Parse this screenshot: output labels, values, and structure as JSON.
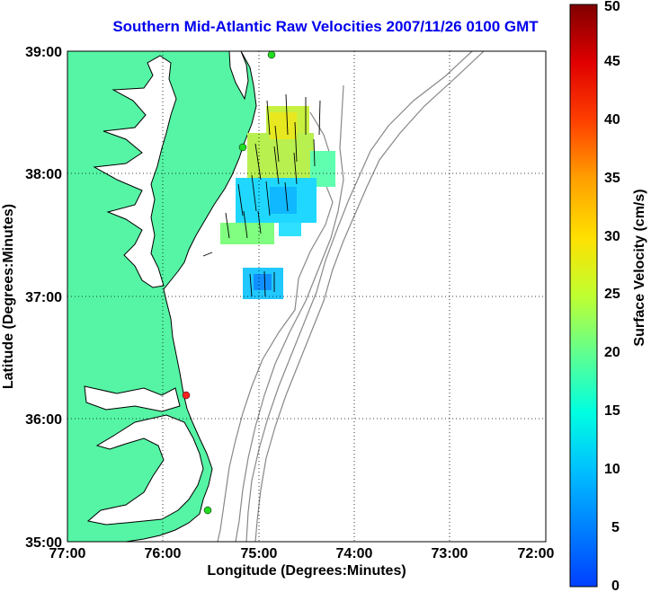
{
  "title": "Southern Mid-Atlantic Raw Velocities 2007/11/26 0100 GMT",
  "x_axis": {
    "label": "Longitude (Degrees:Minutes)",
    "ticks": [
      "77:00",
      "76:00",
      "75:00",
      "74:00",
      "73:00",
      "72:00"
    ],
    "range": [
      -77,
      -72
    ]
  },
  "y_axis": {
    "label": "Latitude (Degrees:Minutes)",
    "ticks": [
      "35:00",
      "36:00",
      "37:00",
      "38:00",
      "39:00"
    ],
    "range": [
      35,
      39
    ]
  },
  "colorbar": {
    "label": "Surface Velocity (cm/s)",
    "ticks": [
      "0",
      "5",
      "10",
      "15",
      "20",
      "25",
      "30",
      "35",
      "40",
      "45",
      "50"
    ],
    "range": [
      0,
      50
    ],
    "colormap": "jet"
  },
  "colors": {
    "land": "#55f5a5",
    "ocean": "#ffffff",
    "coastline": "#000000",
    "bathymetry": "#888888",
    "title": "#0000ee",
    "station_active": "#22dd22",
    "station_inactive": "#ff2222"
  },
  "stations": [
    {
      "lon": -74.87,
      "lat": 38.99,
      "status": "active"
    },
    {
      "lon": -75.17,
      "lat": 38.22,
      "status": "active"
    },
    {
      "lon": -75.69,
      "lat": 36.18,
      "status": "inactive"
    },
    {
      "lon": -75.47,
      "lat": 35.22,
      "status": "active"
    }
  ],
  "chart_data": {
    "type": "heatmap",
    "x_unit": "degrees longitude",
    "y_unit": "degrees latitude",
    "value_unit": "cm/s",
    "vmin": 0,
    "vmax": 50,
    "regions": [
      {
        "lon_range": [
          -75.05,
          -74.45
        ],
        "lat_range": [
          38.05,
          38.45
        ],
        "speed_range": [
          18,
          28
        ]
      },
      {
        "lon_range": [
          -75.35,
          -74.8
        ],
        "lat_range": [
          37.45,
          38.0
        ],
        "speed_range": [
          8,
          16
        ]
      },
      {
        "lon_range": [
          -74.75,
          -74.35
        ],
        "lat_range": [
          37.75,
          38.05
        ],
        "speed_range": [
          7,
          12
        ]
      },
      {
        "lon_range": [
          -75.15,
          -74.7
        ],
        "lat_range": [
          36.92,
          37.22
        ],
        "speed_range": [
          6,
          11
        ]
      }
    ],
    "vector_direction": "predominantly northward with slight westward tilt"
  }
}
